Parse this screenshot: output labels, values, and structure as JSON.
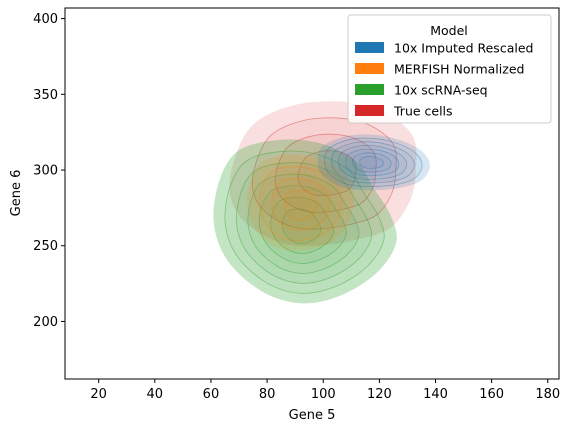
{
  "chart_data": {
    "type": "kde-contour",
    "xlabel": "Gene 5",
    "ylabel": "Gene 6",
    "xlim": [
      8,
      184
    ],
    "ylim": [
      162,
      407
    ],
    "xticks": [
      20,
      40,
      60,
      80,
      100,
      120,
      140,
      160,
      180
    ],
    "yticks": [
      200,
      250,
      300,
      350,
      400
    ],
    "grid": false,
    "legend": {
      "title": "Model",
      "placement": "top-right",
      "entries": [
        {
          "label": "10x Imputed Rescaled",
          "color": "#1f77b4"
        },
        {
          "label": "MERFISH Normalized",
          "color": "#ff7f0e"
        },
        {
          "label": "10x scRNA-seq",
          "color": "#2ca02c"
        },
        {
          "label": "True cells",
          "color": "#d62728"
        }
      ]
    },
    "series": [
      {
        "label": "True cells",
        "color": "#d62728",
        "fill_opacity": 0.15,
        "outline": [
          [
            75,
            330
          ],
          [
            90,
            343
          ],
          [
            108,
            345
          ],
          [
            122,
            338
          ],
          [
            132,
            322
          ],
          [
            133,
            300
          ],
          [
            131,
            280
          ],
          [
            124,
            262
          ],
          [
            112,
            254
          ],
          [
            97,
            250
          ],
          [
            85,
            252
          ],
          [
            73,
            264
          ],
          [
            67,
            282
          ],
          [
            68,
            305
          ]
        ],
        "center": [
          102,
          298
        ],
        "levels": 3
      },
      {
        "label": "10x scRNA-seq",
        "color": "#2ca02c",
        "fill_opacity": 0.28,
        "outline": [
          [
            70,
            313
          ],
          [
            85,
            320
          ],
          [
            100,
            317
          ],
          [
            112,
            305
          ],
          [
            118,
            288
          ],
          [
            124,
            270
          ],
          [
            126,
            252
          ],
          [
            119,
            232
          ],
          [
            106,
            217
          ],
          [
            92,
            212
          ],
          [
            78,
            220
          ],
          [
            66,
            240
          ],
          [
            61,
            265
          ],
          [
            63,
            293
          ]
        ],
        "center": [
          92,
          262
        ],
        "levels": 6
      },
      {
        "label": "MERFISH Normalized",
        "color": "#ff7f0e",
        "fill_opacity": 0.15,
        "outline": [
          [
            78,
            305
          ],
          [
            90,
            310
          ],
          [
            103,
            304
          ],
          [
            110,
            290
          ],
          [
            110,
            270
          ],
          [
            104,
            254
          ],
          [
            93,
            247
          ],
          [
            82,
            250
          ],
          [
            75,
            264
          ],
          [
            73,
            284
          ]
        ],
        "center": [
          92,
          276
        ],
        "levels": 3
      },
      {
        "label": "10x Imputed Rescaled",
        "color": "#1f77b4",
        "fill_opacity": 0.18,
        "outline": [
          [
            100,
            316
          ],
          [
            110,
            323
          ],
          [
            123,
            322
          ],
          [
            134,
            314
          ],
          [
            138,
            303
          ],
          [
            134,
            292
          ],
          [
            122,
            287
          ],
          [
            108,
            288
          ],
          [
            100,
            296
          ],
          [
            98,
            306
          ]
        ],
        "center": [
          117,
          305
        ],
        "levels": 6
      }
    ]
  }
}
